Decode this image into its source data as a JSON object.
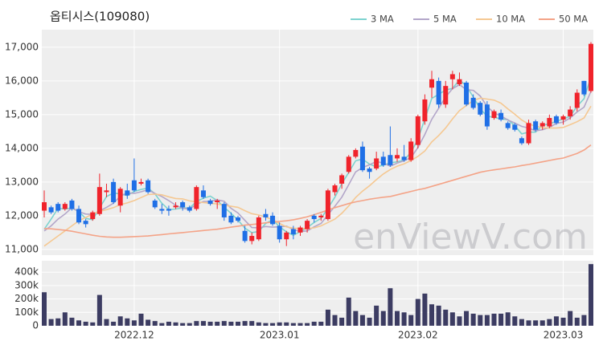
{
  "chart_data": {
    "type": "candlestick",
    "title": "옵티시스(109080)",
    "watermark": "enViewV.com",
    "legend": "top-right",
    "grid": true,
    "up_color": "#f0232b",
    "down_color": "#1f6fe6",
    "categories": [
      null,
      null,
      null,
      null,
      null,
      null,
      null,
      null,
      null,
      null,
      null,
      null,
      null,
      "2022.12",
      null,
      null,
      null,
      null,
      null,
      null,
      null,
      null,
      null,
      null,
      null,
      null,
      null,
      null,
      null,
      null,
      null,
      null,
      null,
      null,
      "2023.01",
      null,
      null,
      null,
      null,
      null,
      null,
      null,
      null,
      null,
      null,
      null,
      null,
      null,
      null,
      null,
      null,
      null,
      null,
      null,
      "2023.02",
      null,
      null,
      null,
      null,
      null,
      null,
      null,
      null,
      null,
      null,
      null,
      null,
      null,
      null,
      null,
      null,
      null,
      null,
      null,
      null,
      "2023.03",
      null,
      null,
      null,
      null
    ],
    "open": [
      12150,
      12250,
      12350,
      12200,
      12450,
      12200,
      11850,
      11900,
      12050,
      12700,
      13000,
      12300,
      12750,
      13050,
      12950,
      13050,
      12450,
      12200,
      12200,
      12250,
      12400,
      12250,
      12200,
      12750,
      12450,
      12400,
      12350,
      12000,
      11950,
      11550,
      11250,
      11300,
      12050,
      12000,
      11700,
      11300,
      11600,
      11500,
      11600,
      12000,
      11950,
      11900,
      12700,
      12950,
      13300,
      13750,
      14050,
      13400,
      13400,
      13750,
      13800,
      13700,
      13750,
      13650,
      14100,
      14800,
      15800,
      16000,
      15300,
      16050,
      15900,
      15950,
      15500,
      15350,
      15300,
      14900,
      15050,
      14750,
      14700,
      14300,
      14150,
      14800,
      14650,
      14650,
      14950,
      14850,
      14950,
      15200,
      16000,
      15700
    ],
    "high": [
      12750,
      12300,
      12400,
      12400,
      12500,
      12300,
      11900,
      12150,
      13250,
      12950,
      13100,
      12850,
      12950,
      13700,
      13100,
      13100,
      12500,
      12350,
      12300,
      12400,
      12450,
      12300,
      12900,
      12900,
      12500,
      12500,
      12400,
      12100,
      12000,
      11700,
      11500,
      12000,
      12200,
      12100,
      11800,
      11550,
      11700,
      11700,
      11900,
      12050,
      12050,
      12800,
      12950,
      13250,
      13800,
      14000,
      14200,
      13450,
      13900,
      13900,
      14650,
      14000,
      14100,
      14300,
      15000,
      15600,
      16300,
      16100,
      16000,
      16300,
      16250,
      16000,
      15600,
      15400,
      15400,
      15150,
      15150,
      14800,
      14750,
      14350,
      14850,
      14850,
      14800,
      15000,
      15000,
      15000,
      15250,
      15750,
      16000,
      17150
    ],
    "low": [
      11950,
      12050,
      12100,
      12150,
      12150,
      11750,
      11650,
      11850,
      12000,
      12550,
      12350,
      12100,
      12500,
      12700,
      12900,
      12650,
      12200,
      12050,
      12000,
      12200,
      12150,
      12100,
      12150,
      12500,
      12300,
      12200,
      11850,
      11750,
      11800,
      11200,
      11150,
      11250,
      11850,
      11700,
      11200,
      11100,
      11300,
      11400,
      11500,
      11800,
      11850,
      11850,
      12600,
      12800,
      13250,
      13700,
      13300,
      13100,
      13350,
      13450,
      13450,
      13600,
      13600,
      13600,
      14000,
      14700,
      15500,
      15200,
      15200,
      15750,
      15850,
      15250,
      15150,
      14950,
      14550,
      14850,
      14800,
      14550,
      14500,
      14100,
      14100,
      14500,
      14550,
      14600,
      14700,
      14700,
      14850,
      15100,
      15550,
      15650
    ],
    "close": [
      12400,
      12100,
      12150,
      12350,
      12200,
      11800,
      11750,
      12100,
      12850,
      12750,
      12400,
      12800,
      12600,
      12750,
      13000,
      12700,
      12250,
      12150,
      12150,
      12300,
      12250,
      12150,
      12850,
      12550,
      12350,
      12450,
      11950,
      11800,
      11850,
      11250,
      11400,
      11950,
      11950,
      11750,
      11300,
      11500,
      11450,
      11650,
      11850,
      11900,
      12000,
      12750,
      12900,
      13200,
      13750,
      13950,
      13350,
      13300,
      13700,
      13500,
      13500,
      13800,
      13650,
      14200,
      14950,
      15450,
      16050,
      15300,
      15850,
      16200,
      16050,
      15300,
      15200,
      15000,
      14650,
      15100,
      14850,
      14600,
      14550,
      14150,
      14750,
      14550,
      14750,
      14900,
      14750,
      14950,
      15150,
      15650,
      15600,
      17100
    ],
    "ylim": [
      10830,
      17520
    ],
    "yticks": [
      {
        "value": 11000,
        "label": "11,000"
      },
      {
        "value": 12000,
        "label": "12,000"
      },
      {
        "value": 13000,
        "label": "13,000"
      },
      {
        "value": 14000,
        "label": "14,000"
      },
      {
        "value": 15000,
        "label": "15,000"
      },
      {
        "value": 16000,
        "label": "16,000"
      },
      {
        "value": 17000,
        "label": "17,000"
      }
    ],
    "series": [
      {
        "name": "3 MA",
        "color": "#7dd3cf",
        "values": [
          11600,
          11900,
          12220,
          12200,
          12230,
          12120,
          11920,
          11880,
          12230,
          12570,
          12670,
          12650,
          12600,
          12720,
          12780,
          12820,
          12650,
          12370,
          12180,
          12200,
          12230,
          12230,
          12420,
          12520,
          12580,
          12450,
          12250,
          12070,
          11870,
          11630,
          11500,
          11530,
          11770,
          11880,
          11670,
          11520,
          11420,
          11530,
          11650,
          11800,
          11920,
          12220,
          12550,
          12950,
          13280,
          13630,
          13680,
          13530,
          13450,
          13500,
          13570,
          13600,
          13650,
          13880,
          14270,
          14870,
          15480,
          15600,
          15730,
          15780,
          16030,
          15850,
          15520,
          15170,
          14950,
          14920,
          14870,
          14850,
          14670,
          14430,
          14480,
          14480,
          14680,
          14730,
          14800,
          14870,
          14950,
          15250,
          15470,
          16120
        ]
      },
      {
        "name": "5 MA",
        "color": "#b3a6c9",
        "values": [
          11550,
          11700,
          11900,
          12050,
          12240,
          12120,
          12050,
          12040,
          12140,
          12250,
          12370,
          12580,
          12680,
          12660,
          12710,
          12770,
          12660,
          12570,
          12450,
          12310,
          12220,
          12200,
          12340,
          12420,
          12430,
          12470,
          12430,
          12220,
          12080,
          11860,
          11650,
          11640,
          11680,
          11660,
          11670,
          11690,
          11590,
          11530,
          11550,
          11670,
          11770,
          12030,
          12280,
          12550,
          12920,
          13300,
          13430,
          13510,
          13610,
          13560,
          13470,
          13560,
          13630,
          13730,
          14020,
          14410,
          14860,
          15190,
          15520,
          15770,
          15890,
          15740,
          15720,
          15550,
          15240,
          15050,
          14960,
          14840,
          14750,
          14650,
          14600,
          14520,
          14550,
          14620,
          14740,
          14780,
          14900,
          15080,
          15220,
          15690
        ]
      },
      {
        "name": "10 MA",
        "color": "#f5c892",
        "values": [
          11100,
          11250,
          11400,
          11550,
          11700,
          11850,
          11950,
          12050,
          12130,
          12180,
          12240,
          12330,
          12380,
          12450,
          12540,
          12630,
          12640,
          12620,
          12560,
          12510,
          12500,
          12440,
          12410,
          12390,
          12370,
          12350,
          12310,
          12280,
          12250,
          12150,
          12060,
          12020,
          11960,
          11880,
          11770,
          11670,
          11630,
          11620,
          11620,
          11640,
          11700,
          11800,
          11900,
          12070,
          12290,
          12540,
          12730,
          12890,
          13070,
          13240,
          13370,
          13470,
          13540,
          13640,
          13760,
          13920,
          14190,
          14380,
          14600,
          14870,
          15120,
          15270,
          15420,
          15490,
          15460,
          15430,
          15340,
          15170,
          15010,
          14840,
          14720,
          14660,
          14610,
          14600,
          14600,
          14620,
          14700,
          14790,
          14900,
          15250
        ]
      },
      {
        "name": "50 MA",
        "color": "#f4a387",
        "values": [
          11620,
          11610,
          11590,
          11570,
          11540,
          11500,
          11460,
          11420,
          11390,
          11370,
          11360,
          11360,
          11370,
          11380,
          11390,
          11400,
          11420,
          11440,
          11460,
          11480,
          11500,
          11520,
          11540,
          11560,
          11580,
          11600,
          11630,
          11660,
          11690,
          11720,
          11740,
          11760,
          11790,
          11810,
          11830,
          11850,
          11880,
          11920,
          11970,
          12030,
          12100,
          12170,
          12240,
          12300,
          12360,
          12410,
          12450,
          12490,
          12520,
          12550,
          12570,
          12620,
          12670,
          12720,
          12770,
          12810,
          12870,
          12930,
          12990,
          13050,
          13110,
          13170,
          13230,
          13290,
          13330,
          13360,
          13390,
          13420,
          13450,
          13490,
          13520,
          13560,
          13600,
          13640,
          13680,
          13710,
          13780,
          13850,
          13950,
          14100
        ]
      }
    ],
    "volume": {
      "color": "#3c3c62",
      "values": [
        250000,
        50000,
        55000,
        100000,
        60000,
        40000,
        30000,
        25000,
        230000,
        50000,
        30000,
        70000,
        55000,
        40000,
        90000,
        45000,
        35000,
        20000,
        30000,
        25000,
        20000,
        20000,
        35000,
        35000,
        30000,
        30000,
        35000,
        30000,
        30000,
        35000,
        35000,
        25000,
        20000,
        20000,
        25000,
        25000,
        20000,
        20000,
        20000,
        30000,
        30000,
        120000,
        80000,
        60000,
        210000,
        110000,
        80000,
        60000,
        150000,
        110000,
        280000,
        110000,
        100000,
        80000,
        200000,
        240000,
        160000,
        150000,
        120000,
        100000,
        70000,
        110000,
        90000,
        80000,
        80000,
        90000,
        90000,
        100000,
        70000,
        50000,
        40000,
        40000,
        40000,
        50000,
        70000,
        60000,
        110000,
        60000,
        80000,
        460000
      ],
      "ylim": [
        0,
        485000
      ],
      "yticks": [
        0,
        {
          "value": 100000,
          "label": "100k"
        },
        {
          "value": 200000,
          "label": "200k"
        },
        {
          "value": 300000,
          "label": "300k"
        },
        {
          "value": 400000,
          "label": "400k"
        }
      ]
    }
  }
}
